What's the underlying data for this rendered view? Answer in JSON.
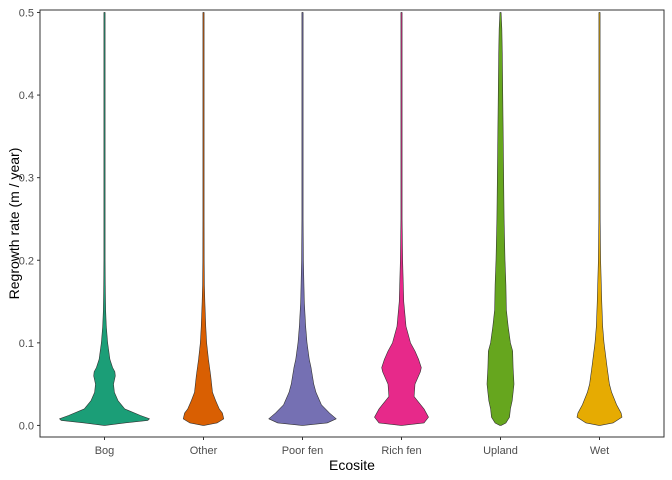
{
  "chart_data": {
    "type": "violin",
    "title": "",
    "xlabel": "Ecosite",
    "ylabel": "Regrowth rate (m / year)",
    "ylim": [
      -0.014,
      0.503
    ],
    "yticks": [
      0.0,
      0.1,
      0.2,
      0.3,
      0.4,
      0.5
    ],
    "ytick_labels": [
      "0.0",
      "0.1",
      "0.2",
      "0.3",
      "0.4",
      "0.5"
    ],
    "grid": false,
    "legend": "none",
    "categories": [
      "Bog",
      "Other",
      "Poor fen",
      "Rich fen",
      "Upland",
      "Wet"
    ],
    "colors": [
      "#1b9e77",
      "#d95f02",
      "#7570b3",
      "#e7298a",
      "#66a61e",
      "#e6ab02"
    ],
    "violins": [
      {
        "category": "Bog",
        "min": 0.0,
        "max": 0.5,
        "profile": [
          [
            0.0,
            0.0
          ],
          [
            0.003,
            0.45
          ],
          [
            0.006,
            0.96
          ],
          [
            0.008,
            1.0
          ],
          [
            0.012,
            0.8
          ],
          [
            0.02,
            0.45
          ],
          [
            0.03,
            0.3
          ],
          [
            0.04,
            0.22
          ],
          [
            0.05,
            0.2
          ],
          [
            0.06,
            0.24
          ],
          [
            0.065,
            0.23
          ],
          [
            0.07,
            0.18
          ],
          [
            0.08,
            0.12
          ],
          [
            0.1,
            0.07
          ],
          [
            0.12,
            0.04
          ],
          [
            0.14,
            0.025
          ],
          [
            0.17,
            0.017
          ],
          [
            0.2,
            0.012
          ],
          [
            0.215,
            0.01
          ],
          [
            0.25,
            0.004
          ],
          [
            0.5,
            0.003
          ]
        ]
      },
      {
        "category": "Other",
        "min": 0.0,
        "max": 0.5,
        "profile": [
          [
            0.0,
            0.0
          ],
          [
            0.003,
            0.3
          ],
          [
            0.008,
            0.45
          ],
          [
            0.015,
            0.42
          ],
          [
            0.02,
            0.35
          ],
          [
            0.03,
            0.27
          ],
          [
            0.04,
            0.2
          ],
          [
            0.06,
            0.16
          ],
          [
            0.08,
            0.11
          ],
          [
            0.1,
            0.07
          ],
          [
            0.12,
            0.05
          ],
          [
            0.15,
            0.03
          ],
          [
            0.17,
            0.02
          ],
          [
            0.2,
            0.015
          ],
          [
            0.25,
            0.012
          ],
          [
            0.3,
            0.009
          ],
          [
            0.325,
            0.008
          ],
          [
            0.34,
            0.004
          ],
          [
            0.5,
            0.003
          ]
        ]
      },
      {
        "category": "Poor fen",
        "min": 0.0,
        "max": 0.5,
        "profile": [
          [
            0.0,
            0.0
          ],
          [
            0.003,
            0.55
          ],
          [
            0.008,
            0.75
          ],
          [
            0.015,
            0.6
          ],
          [
            0.025,
            0.42
          ],
          [
            0.04,
            0.3
          ],
          [
            0.05,
            0.25
          ],
          [
            0.06,
            0.22
          ],
          [
            0.07,
            0.19
          ],
          [
            0.08,
            0.15
          ],
          [
            0.1,
            0.1
          ],
          [
            0.12,
            0.07
          ],
          [
            0.15,
            0.04
          ],
          [
            0.2,
            0.02
          ],
          [
            0.25,
            0.012
          ],
          [
            0.3,
            0.008
          ],
          [
            0.34,
            0.012
          ],
          [
            0.345,
            0.012
          ],
          [
            0.36,
            0.004
          ],
          [
            0.5,
            0.003
          ]
        ]
      },
      {
        "category": "Rich fen",
        "min": 0.0,
        "max": 0.5,
        "profile": [
          [
            0.0,
            0.0
          ],
          [
            0.003,
            0.5
          ],
          [
            0.01,
            0.6
          ],
          [
            0.02,
            0.5
          ],
          [
            0.035,
            0.28
          ],
          [
            0.05,
            0.3
          ],
          [
            0.065,
            0.42
          ],
          [
            0.07,
            0.44
          ],
          [
            0.08,
            0.38
          ],
          [
            0.09,
            0.3
          ],
          [
            0.1,
            0.2
          ],
          [
            0.12,
            0.1
          ],
          [
            0.15,
            0.05
          ],
          [
            0.2,
            0.025
          ],
          [
            0.25,
            0.012
          ],
          [
            0.3,
            0.008
          ],
          [
            0.45,
            0.004
          ],
          [
            0.5,
            0.003
          ]
        ]
      },
      {
        "category": "Upland",
        "min": 0.0,
        "max": 0.5,
        "profile": [
          [
            0.0,
            0.0
          ],
          [
            0.003,
            0.12
          ],
          [
            0.01,
            0.2
          ],
          [
            0.02,
            0.22
          ],
          [
            0.03,
            0.26
          ],
          [
            0.05,
            0.3
          ],
          [
            0.07,
            0.28
          ],
          [
            0.09,
            0.27
          ],
          [
            0.1,
            0.22
          ],
          [
            0.12,
            0.17
          ],
          [
            0.14,
            0.13
          ],
          [
            0.17,
            0.12
          ],
          [
            0.2,
            0.1
          ],
          [
            0.25,
            0.08
          ],
          [
            0.3,
            0.07
          ],
          [
            0.35,
            0.06
          ],
          [
            0.4,
            0.05
          ],
          [
            0.45,
            0.04
          ],
          [
            0.48,
            0.03
          ],
          [
            0.5,
            0.003
          ]
        ]
      },
      {
        "category": "Wet",
        "min": 0.0,
        "max": 0.5,
        "profile": [
          [
            0.0,
            0.0
          ],
          [
            0.003,
            0.3
          ],
          [
            0.01,
            0.5
          ],
          [
            0.015,
            0.48
          ],
          [
            0.025,
            0.38
          ],
          [
            0.04,
            0.27
          ],
          [
            0.05,
            0.22
          ],
          [
            0.07,
            0.17
          ],
          [
            0.1,
            0.1
          ],
          [
            0.12,
            0.07
          ],
          [
            0.15,
            0.05
          ],
          [
            0.2,
            0.025
          ],
          [
            0.25,
            0.015
          ],
          [
            0.3,
            0.01
          ],
          [
            0.39,
            0.008
          ],
          [
            0.4,
            0.004
          ],
          [
            0.5,
            0.003
          ]
        ]
      }
    ]
  }
}
